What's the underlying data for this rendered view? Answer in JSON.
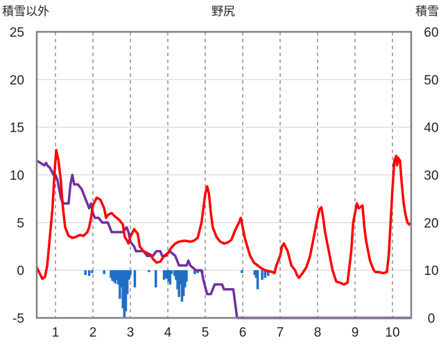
{
  "chart_data": {
    "type": "line",
    "title": "野尻",
    "left_axis_label": "積雪以外",
    "right_axis_label": "積雪",
    "x_ticks": [
      "1",
      "2",
      "3",
      "4",
      "5",
      "6",
      "7",
      "8",
      "9",
      "10"
    ],
    "x_range": [
      0.5,
      10.5
    ],
    "left_ylim": [
      -5,
      25
    ],
    "left_ticks": [
      "25",
      "20",
      "15",
      "10",
      "5",
      "0",
      "-5"
    ],
    "right_ylim": [
      0,
      60
    ],
    "right_ticks": [
      "60",
      "50",
      "40",
      "30",
      "20",
      "10",
      "0"
    ],
    "grid": {
      "vertical_dashed": true,
      "horizontal_solid": true
    },
    "colors": {
      "temperature": "#ff0000",
      "snow_depth": "#7030a0",
      "precipitation": "#1f6fc6"
    },
    "series": [
      {
        "axis": "left",
        "points": [
          [
            0.5,
            0.3
          ],
          [
            0.55,
            -0.1
          ],
          [
            0.6,
            -0.5
          ],
          [
            0.65,
            -0.9
          ],
          [
            0.72,
            -0.7
          ],
          [
            0.78,
            0.5
          ],
          [
            0.85,
            3.5
          ],
          [
            0.92,
            6.5
          ],
          [
            0.98,
            10.5
          ],
          [
            1.02,
            12.6
          ],
          [
            1.08,
            11.5
          ],
          [
            1.14,
            9.5
          ],
          [
            1.2,
            6.5
          ],
          [
            1.26,
            4.5
          ],
          [
            1.35,
            3.6
          ],
          [
            1.45,
            3.4
          ],
          [
            1.55,
            3.5
          ],
          [
            1.65,
            3.7
          ],
          [
            1.75,
            3.6
          ],
          [
            1.85,
            4.0
          ],
          [
            1.9,
            4.5
          ],
          [
            1.95,
            5.5
          ],
          [
            2.0,
            6.8
          ],
          [
            2.05,
            7.2
          ],
          [
            2.1,
            7.6
          ],
          [
            2.2,
            7.4
          ],
          [
            2.3,
            6.5
          ],
          [
            2.35,
            5.5
          ],
          [
            2.4,
            5.8
          ],
          [
            2.5,
            6.0
          ],
          [
            2.6,
            5.6
          ],
          [
            2.7,
            5.3
          ],
          [
            2.8,
            4.8
          ],
          [
            2.85,
            3.5
          ],
          [
            2.9,
            3.2
          ],
          [
            2.95,
            2.8
          ],
          [
            3.0,
            3.5
          ],
          [
            3.1,
            4.3
          ],
          [
            3.2,
            3.8
          ],
          [
            3.25,
            2.5
          ],
          [
            3.35,
            2.0
          ],
          [
            3.45,
            1.8
          ],
          [
            3.55,
            1.6
          ],
          [
            3.6,
            1.2
          ],
          [
            3.7,
            0.8
          ],
          [
            3.8,
            0.9
          ],
          [
            3.9,
            1.5
          ],
          [
            4.0,
            1.8
          ],
          [
            4.1,
            2.4
          ],
          [
            4.2,
            2.8
          ],
          [
            4.3,
            3.0
          ],
          [
            4.45,
            3.1
          ],
          [
            4.6,
            3.0
          ],
          [
            4.7,
            3.1
          ],
          [
            4.8,
            3.4
          ],
          [
            4.9,
            5.0
          ],
          [
            4.95,
            6.5
          ],
          [
            5.0,
            8.0
          ],
          [
            5.05,
            8.8
          ],
          [
            5.1,
            8.0
          ],
          [
            5.15,
            6.0
          ],
          [
            5.2,
            4.5
          ],
          [
            5.3,
            3.5
          ],
          [
            5.4,
            3.0
          ],
          [
            5.5,
            2.8
          ],
          [
            5.6,
            2.9
          ],
          [
            5.7,
            3.2
          ],
          [
            5.8,
            4.2
          ],
          [
            5.9,
            5.0
          ],
          [
            5.95,
            5.5
          ],
          [
            6.0,
            4.5
          ],
          [
            6.05,
            3.5
          ],
          [
            6.1,
            2.8
          ],
          [
            6.2,
            1.5
          ],
          [
            6.3,
            0.8
          ],
          [
            6.4,
            0.5
          ],
          [
            6.5,
            0.2
          ],
          [
            6.6,
            0.0
          ],
          [
            6.7,
            -0.1
          ],
          [
            6.8,
            -0.2
          ],
          [
            6.85,
            -0.3
          ],
          [
            6.9,
            0.5
          ],
          [
            7.0,
            1.5
          ],
          [
            7.05,
            2.5
          ],
          [
            7.1,
            2.8
          ],
          [
            7.2,
            2.0
          ],
          [
            7.3,
            0.5
          ],
          [
            7.4,
            0.0
          ],
          [
            7.45,
            -0.5
          ],
          [
            7.5,
            -0.8
          ],
          [
            7.6,
            -0.3
          ],
          [
            7.7,
            0.3
          ],
          [
            7.8,
            1.5
          ],
          [
            7.9,
            3.5
          ],
          [
            8.0,
            5.5
          ],
          [
            8.05,
            6.4
          ],
          [
            8.1,
            6.6
          ],
          [
            8.15,
            5.5
          ],
          [
            8.2,
            4.0
          ],
          [
            8.3,
            2.0
          ],
          [
            8.4,
            0.0
          ],
          [
            8.5,
            -1.2
          ],
          [
            8.6,
            -1.3
          ],
          [
            8.7,
            -1.5
          ],
          [
            8.8,
            -1.3
          ],
          [
            8.9,
            2.0
          ],
          [
            8.95,
            5.0
          ],
          [
            9.0,
            6.0
          ],
          [
            9.05,
            7.0
          ],
          [
            9.1,
            6.5
          ],
          [
            9.2,
            6.8
          ],
          [
            9.25,
            4.5
          ],
          [
            9.3,
            3.0
          ],
          [
            9.4,
            1.0
          ],
          [
            9.5,
            0.0
          ],
          [
            9.55,
            -0.2
          ],
          [
            9.65,
            -0.2
          ],
          [
            9.75,
            -0.3
          ],
          [
            9.85,
            -0.2
          ],
          [
            9.9,
            1.5
          ],
          [
            9.95,
            5.0
          ],
          [
            10.0,
            8.5
          ],
          [
            10.05,
            11.5
          ],
          [
            10.1,
            12.0
          ],
          [
            10.12,
            11.0
          ],
          [
            10.15,
            11.8
          ],
          [
            10.2,
            11.5
          ],
          [
            10.25,
            9.0
          ],
          [
            10.3,
            7.0
          ],
          [
            10.35,
            5.8
          ],
          [
            10.4,
            5.0
          ],
          [
            10.45,
            4.8
          ],
          [
            10.5,
            5.0
          ]
        ]
      },
      {
        "axis": "right",
        "points": [
          [
            0.5,
            33
          ],
          [
            0.6,
            32.5
          ],
          [
            0.7,
            32
          ],
          [
            0.75,
            32.5
          ],
          [
            0.78,
            32
          ],
          [
            0.85,
            31.5
          ],
          [
            0.95,
            30
          ],
          [
            1.0,
            30
          ],
          [
            1.05,
            29
          ],
          [
            1.1,
            27
          ],
          [
            1.15,
            25
          ],
          [
            1.2,
            24
          ],
          [
            1.35,
            24
          ],
          [
            1.4,
            28
          ],
          [
            1.45,
            30
          ],
          [
            1.5,
            28
          ],
          [
            1.6,
            28
          ],
          [
            1.7,
            27
          ],
          [
            1.8,
            25
          ],
          [
            1.9,
            23
          ],
          [
            1.95,
            24
          ],
          [
            2.0,
            22
          ],
          [
            2.05,
            21
          ],
          [
            2.15,
            21
          ],
          [
            2.25,
            20
          ],
          [
            2.4,
            20
          ],
          [
            2.5,
            18
          ],
          [
            2.8,
            18
          ],
          [
            2.9,
            19
          ],
          [
            2.95,
            18
          ],
          [
            3.0,
            16
          ],
          [
            3.1,
            15
          ],
          [
            3.15,
            14
          ],
          [
            3.35,
            14
          ],
          [
            3.45,
            13
          ],
          [
            3.6,
            13
          ],
          [
            3.7,
            14
          ],
          [
            3.8,
            14
          ],
          [
            3.85,
            13
          ],
          [
            3.95,
            13
          ],
          [
            4.05,
            14
          ],
          [
            4.2,
            13
          ],
          [
            4.3,
            11
          ],
          [
            4.5,
            11
          ],
          [
            4.55,
            12
          ],
          [
            4.6,
            11
          ],
          [
            4.75,
            10
          ],
          [
            4.9,
            10
          ],
          [
            4.95,
            8
          ],
          [
            5.05,
            5
          ],
          [
            5.15,
            5
          ],
          [
            5.25,
            7
          ],
          [
            5.45,
            7
          ],
          [
            5.5,
            6
          ],
          [
            5.75,
            6
          ],
          [
            5.85,
            0
          ],
          [
            6.5,
            0
          ],
          [
            7.5,
            0
          ],
          [
            8.5,
            0
          ],
          [
            9.5,
            0
          ],
          [
            10.5,
            0
          ]
        ]
      },
      {
        "axis": "left",
        "bars": [
          [
            1.8,
            -0.5
          ],
          [
            1.9,
            -0.6
          ],
          [
            1.98,
            -0.3
          ],
          [
            2.3,
            -0.4
          ],
          [
            2.48,
            -0.8
          ],
          [
            2.52,
            -1.1
          ],
          [
            2.56,
            -1.2
          ],
          [
            2.6,
            -1.4
          ],
          [
            2.64,
            -1.0
          ],
          [
            2.68,
            -1.5
          ],
          [
            2.72,
            -3.0
          ],
          [
            2.76,
            -1.8
          ],
          [
            2.8,
            -4.0
          ],
          [
            2.84,
            -5.0
          ],
          [
            2.88,
            -4.3
          ],
          [
            2.92,
            -2.5
          ],
          [
            2.96,
            -1.0
          ],
          [
            3.0,
            -0.5
          ],
          [
            3.12,
            -1.8
          ],
          [
            3.5,
            -0.2
          ],
          [
            3.68,
            -1.8
          ],
          [
            3.9,
            -1.0
          ],
          [
            3.94,
            -0.8
          ],
          [
            3.98,
            -0.9
          ],
          [
            4.02,
            -1.2
          ],
          [
            4.06,
            -1.5
          ],
          [
            4.1,
            -0.4
          ],
          [
            4.18,
            -0.6
          ],
          [
            4.22,
            -1.0
          ],
          [
            4.26,
            -2.0
          ],
          [
            4.3,
            -2.8
          ],
          [
            4.34,
            -1.5
          ],
          [
            4.38,
            -3.3
          ],
          [
            4.42,
            -2.7
          ],
          [
            4.46,
            -1.8
          ],
          [
            4.5,
            -1.2
          ],
          [
            4.72,
            -0.4
          ],
          [
            4.8,
            -0.3
          ],
          [
            4.92,
            -0.3
          ],
          [
            5.98,
            -0.3
          ],
          [
            6.32,
            -0.5
          ],
          [
            6.36,
            -0.8
          ],
          [
            6.4,
            -2.0
          ],
          [
            6.52,
            -1.0
          ],
          [
            6.6,
            -0.8
          ],
          [
            6.68,
            -0.6
          ]
        ]
      }
    ]
  }
}
